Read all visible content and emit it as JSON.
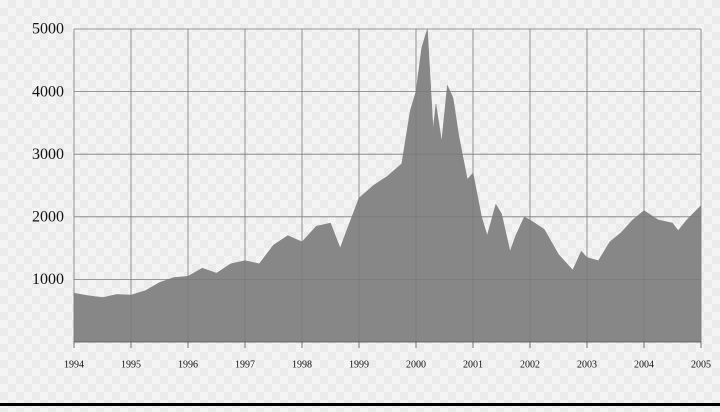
{
  "chart_data": {
    "type": "area",
    "color": "#878787",
    "grid": true,
    "x": [
      1994.0,
      1994.25,
      1994.5,
      1994.75,
      1995.0,
      1995.25,
      1995.5,
      1995.75,
      1996.0,
      1996.25,
      1996.5,
      1996.75,
      1997.0,
      1997.25,
      1997.5,
      1997.75,
      1998.0,
      1998.25,
      1998.5,
      1998.67,
      1998.75,
      1999.0,
      1999.25,
      1999.5,
      1999.75,
      1999.9,
      2000.0,
      2000.1,
      2000.2,
      2000.3,
      2000.35,
      2000.45,
      2000.55,
      2000.65,
      2000.75,
      2000.9,
      2001.0,
      2001.15,
      2001.25,
      2001.4,
      2001.5,
      2001.65,
      2001.75,
      2001.9,
      2002.0,
      2002.25,
      2002.5,
      2002.6,
      2002.75,
      2002.9,
      2003.0,
      2003.2,
      2003.4,
      2003.6,
      2003.8,
      2004.0,
      2004.25,
      2004.5,
      2004.6,
      2004.75,
      2005.0
    ],
    "values": [
      780,
      740,
      710,
      760,
      750,
      820,
      950,
      1030,
      1050,
      1180,
      1100,
      1250,
      1300,
      1250,
      1550,
      1700,
      1600,
      1850,
      1900,
      1500,
      1700,
      2300,
      2500,
      2650,
      2850,
      3700,
      4000,
      4700,
      5000,
      3400,
      3800,
      3200,
      4100,
      3900,
      3300,
      2600,
      2700,
      2000,
      1700,
      2200,
      2050,
      1450,
      1700,
      2000,
      1950,
      1800,
      1400,
      1300,
      1150,
      1450,
      1350,
      1300,
      1600,
      1750,
      1950,
      2100,
      1950,
      1900,
      1780,
      1950,
      2180
    ],
    "xlim": [
      1994,
      2005
    ],
    "xticks": [
      1994,
      1995,
      1996,
      1997,
      1998,
      1999,
      2000,
      2001,
      2002,
      2003,
      2004,
      2005
    ],
    "ylim": [
      0,
      5000
    ],
    "yticks": [
      1000,
      2000,
      3000,
      4000,
      5000
    ]
  }
}
